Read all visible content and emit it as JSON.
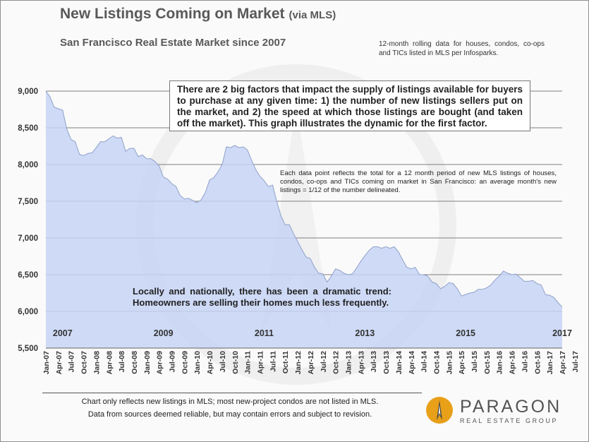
{
  "header": {
    "title": "New Listings Coming on Market",
    "title_suffix": "(via MLS)",
    "subtitle": "San Francisco Real Estate Market since 2007",
    "source_note": "12-month rolling data for houses, condos, co-ops and TICs listed in MLS per Infosparks."
  },
  "annotations": {
    "factor": "There are 2 big factors that impact the supply of listings available for buyers to purchase at any given time: 1) the number of new listings sellers put on the market, and 2) the speed at which those listings are bought (and taken off the market). This graph illustrates the dynamic for the first factor.",
    "datapoint": "Each data point reflects the total for a 12 month period of new MLS listings of houses, condos, co-ops and TICs coming on market in San Francisco: an average month's new listings = 1/12 of the number delineated.",
    "trend": "Locally and nationally, there has been a dramatic trend: Homeowners are selling their homes much less frequently."
  },
  "footer": {
    "line1": "Chart only reflects new listings in MLS; most new-project condos are not listed in MLS.",
    "line2": "Data from sources deemed reliable, but may contain errors and subject to revision."
  },
  "logo": {
    "name": "PARAGON",
    "tagline": "REAL ESTATE GROUP"
  },
  "colors": {
    "area_fill": "#c6d3f4",
    "area_line": "#8fa1c9",
    "grid": "#7f7f7f",
    "logo_gold": "#e8a019",
    "logo_dark": "#404040"
  },
  "chart_data": {
    "type": "area",
    "title": "New Listings Coming on Market (via MLS)",
    "ylim": [
      5500,
      9000
    ],
    "yticks": [
      5500,
      6000,
      6500,
      7000,
      7500,
      8000,
      8500,
      9000
    ],
    "ytick_labels": [
      "5,500",
      "6,000",
      "6,500",
      "7,000",
      "7,500",
      "8,000",
      "8,500",
      "9,000"
    ],
    "grid": true,
    "x_tick_labels": [
      "Jan-07",
      "Apr-07",
      "Jul-07",
      "Oct-07",
      "Jan-08",
      "Apr-08",
      "Jul-08",
      "Oct-08",
      "Jan-09",
      "Apr-09",
      "Jul-09",
      "Oct-09",
      "Jan-10",
      "Apr-10",
      "Jul-10",
      "Oct-10",
      "Jan-11",
      "Apr-11",
      "Jul-11",
      "Oct-11",
      "Jan-12",
      "Apr-12",
      "Jul-12",
      "Oct-12",
      "Jan-13",
      "Apr-13",
      "Jul-13",
      "Oct-13",
      "Jan-14",
      "Apr-14",
      "Jul-14",
      "Oct-14",
      "Jan-15",
      "Apr-15",
      "Jul-15",
      "Oct-15",
      "Jan-16",
      "Apr-16",
      "Jul-16",
      "Oct-16",
      "Jan-17",
      "Apr-17",
      "Jul-17"
    ],
    "year_labels": [
      {
        "label": "2007",
        "month_index": 4
      },
      {
        "label": "2009",
        "month_index": 28
      },
      {
        "label": "2011",
        "month_index": 52
      },
      {
        "label": "2013",
        "month_index": 76
      },
      {
        "label": "2015",
        "month_index": 100
      },
      {
        "label": "2017",
        "month_index": 123
      }
    ],
    "series": [
      {
        "name": "New listings (12-month rolling total)",
        "start": "Jan-07",
        "frequency": "monthly",
        "values": [
          9000,
          8920,
          8780,
          8760,
          8740,
          8480,
          8340,
          8310,
          8140,
          8120,
          8150,
          8160,
          8230,
          8310,
          8310,
          8350,
          8390,
          8360,
          8370,
          8180,
          8220,
          8220,
          8110,
          8130,
          8080,
          8080,
          8040,
          7980,
          7830,
          7800,
          7740,
          7700,
          7580,
          7530,
          7540,
          7510,
          7480,
          7520,
          7620,
          7790,
          7820,
          7900,
          8000,
          8240,
          8230,
          8260,
          8230,
          8240,
          8200,
          8060,
          7930,
          7840,
          7780,
          7700,
          7720,
          7500,
          7300,
          7180,
          7180,
          7060,
          6950,
          6840,
          6740,
          6720,
          6600,
          6520,
          6510,
          6400,
          6480,
          6580,
          6560,
          6520,
          6500,
          6510,
          6590,
          6680,
          6760,
          6830,
          6880,
          6880,
          6860,
          6880,
          6860,
          6880,
          6810,
          6700,
          6600,
          6580,
          6600,
          6500,
          6500,
          6480,
          6400,
          6380,
          6310,
          6340,
          6390,
          6380,
          6310,
          6210,
          6230,
          6250,
          6260,
          6300,
          6300,
          6320,
          6360,
          6430,
          6480,
          6550,
          6520,
          6500,
          6510,
          6460,
          6410,
          6410,
          6420,
          6380,
          6360,
          6230,
          6220,
          6190,
          6120,
          6060
        ]
      }
    ]
  }
}
